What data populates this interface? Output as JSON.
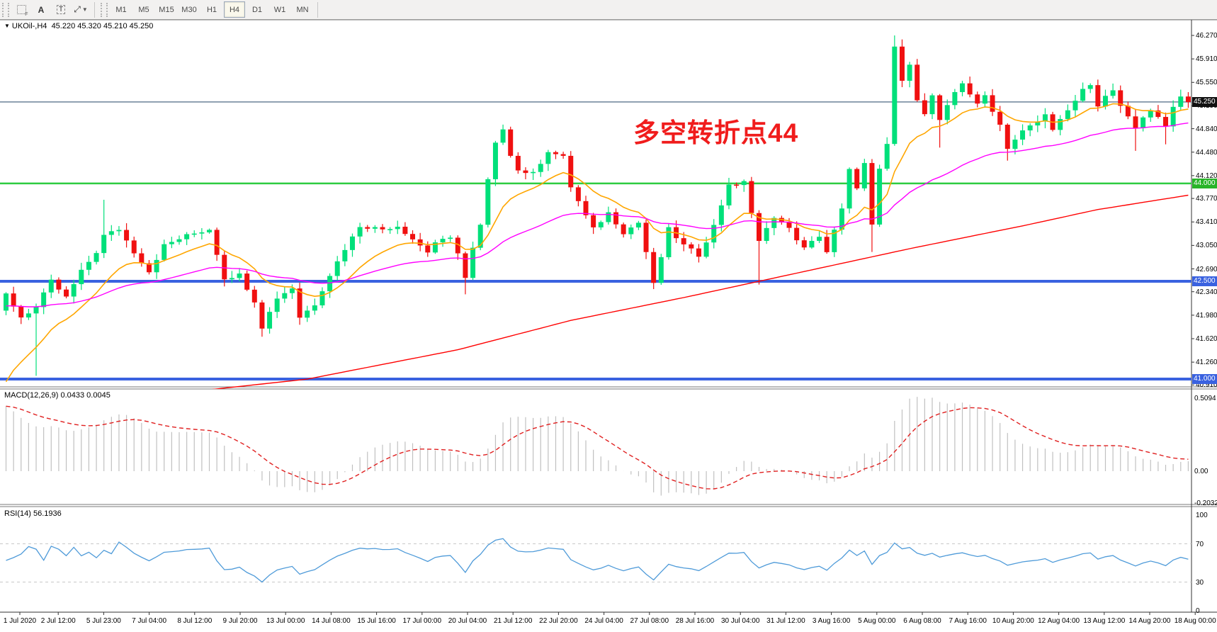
{
  "toolbar": {
    "tools": [
      {
        "name": "crosshair-grid-icon",
        "glyph": ""
      },
      {
        "name": "text-annotation-icon",
        "glyph": "A"
      },
      {
        "name": "label-tool-icon",
        "glyph": "T"
      },
      {
        "name": "arrows-tool-icon",
        "glyph": "⤢"
      }
    ],
    "timeframes": [
      {
        "label": "M1",
        "active": false
      },
      {
        "label": "M5",
        "active": false
      },
      {
        "label": "M15",
        "active": false
      },
      {
        "label": "M30",
        "active": false
      },
      {
        "label": "H1",
        "active": false
      },
      {
        "label": "H4",
        "active": true
      },
      {
        "label": "D1",
        "active": false
      },
      {
        "label": "W1",
        "active": false
      },
      {
        "label": "MN",
        "active": false
      }
    ]
  },
  "pane_title": {
    "symbol_period": "UKOil-,H4",
    "ohlc_text": "45.220 45.320 45.210 45.250"
  },
  "annotation": {
    "text": "多空转折点44",
    "color": "#f01c1c"
  },
  "chart_data": {
    "type": "candlestick",
    "symbol": "UKOil",
    "period": "H4",
    "ohlc_display": {
      "open": "45.220",
      "high": "45.320",
      "low": "45.210",
      "close": "45.250"
    },
    "colors": {
      "bull": "#00e07a",
      "bear": "#f01010",
      "ma_fast": "#ffa600",
      "ma_medium": "#ff00ff",
      "ma_slow": "#ff0000",
      "bid_line": "#6b8299",
      "bid_badge": "#111111",
      "green_line": "#2ecc40",
      "green_badge": "#28b428",
      "blue_line": "#3a62e0",
      "blue_badge": "#3a62e0",
      "macd_hist": "#c0c0c0",
      "macd_signal": "#e02020",
      "rsi_line": "#4f9bd9",
      "rsi_level": "#c8c8c8"
    },
    "price_axis": {
      "ticks": [
        46.27,
        45.91,
        45.55,
        45.19,
        44.84,
        44.48,
        44.12,
        43.77,
        43.41,
        43.05,
        42.69,
        42.34,
        41.98,
        41.62,
        41.26,
        40.91
      ],
      "current_price": {
        "value": 45.25,
        "label": "45.250"
      }
    },
    "hlines": [
      {
        "price": 44.0,
        "label": "44.000",
        "color_key": "green"
      },
      {
        "price": 42.5,
        "label": "42.500",
        "color_key": "blue"
      },
      {
        "price": 41.0,
        "label": "41.000",
        "color_key": "blue"
      }
    ],
    "time_labels": [
      "1 Jul 2020",
      "2 Jul 12:00",
      "5 Jul 23:00",
      "7 Jul 04:00",
      "8 Jul 12:00",
      "9 Jul 20:00",
      "13 Jul 00:00",
      "14 Jul 08:00",
      "15 Jul 16:00",
      "17 Jul 00:00",
      "20 Jul 04:00",
      "21 Jul 12:00",
      "22 Jul 20:00",
      "24 Jul 04:00",
      "27 Jul 08:00",
      "28 Jul 16:00",
      "30 Jul 04:00",
      "31 Jul 12:00",
      "3 Aug 16:00",
      "5 Aug 00:00",
      "6 Aug 08:00",
      "7 Aug 16:00",
      "10 Aug 20:00",
      "12 Aug 04:00",
      "13 Aug 12:00",
      "14 Aug 20:00",
      "18 Aug 00:00"
    ],
    "candle_count": 158,
    "close_path_anchors": [
      [
        0,
        42.3
      ],
      [
        2,
        41.95
      ],
      [
        4,
        42.1
      ],
      [
        6,
        42.5
      ],
      [
        8,
        42.25
      ],
      [
        10,
        42.65
      ],
      [
        12,
        42.95
      ],
      [
        13,
        43.2
      ],
      [
        15,
        43.3
      ],
      [
        17,
        42.95
      ],
      [
        19,
        42.65
      ],
      [
        21,
        43.05
      ],
      [
        24,
        43.2
      ],
      [
        27,
        43.3
      ],
      [
        29,
        42.55
      ],
      [
        31,
        42.6
      ],
      [
        33,
        42.2
      ],
      [
        34,
        41.8
      ],
      [
        36,
        42.25
      ],
      [
        38,
        42.4
      ],
      [
        39,
        41.95
      ],
      [
        41,
        42.15
      ],
      [
        43,
        42.6
      ],
      [
        45,
        43.0
      ],
      [
        47,
        43.35
      ],
      [
        50,
        43.3
      ],
      [
        52,
        43.35
      ],
      [
        54,
        43.15
      ],
      [
        56,
        42.95
      ],
      [
        57,
        43.1
      ],
      [
        59,
        43.15
      ],
      [
        60,
        42.95
      ],
      [
        61,
        42.55
      ],
      [
        62,
        43.0
      ],
      [
        63,
        43.35
      ],
      [
        64,
        44.05
      ],
      [
        65,
        44.6
      ],
      [
        66,
        44.85
      ],
      [
        67,
        44.45
      ],
      [
        68,
        44.2
      ],
      [
        70,
        44.15
      ],
      [
        72,
        44.5
      ],
      [
        74,
        44.4
      ],
      [
        75,
        43.95
      ],
      [
        77,
        43.5
      ],
      [
        78,
        43.3
      ],
      [
        80,
        43.55
      ],
      [
        82,
        43.25
      ],
      [
        84,
        43.4
      ],
      [
        85,
        42.95
      ],
      [
        86,
        42.45
      ],
      [
        88,
        43.3
      ],
      [
        90,
        43.05
      ],
      [
        92,
        42.9
      ],
      [
        94,
        43.35
      ],
      [
        96,
        44.0
      ],
      [
        97,
        43.95
      ],
      [
        98,
        44.05
      ],
      [
        99,
        43.55
      ],
      [
        100,
        43.1
      ],
      [
        102,
        43.5
      ],
      [
        104,
        43.3
      ],
      [
        106,
        43.0
      ],
      [
        108,
        43.2
      ],
      [
        109,
        42.95
      ],
      [
        111,
        43.6
      ],
      [
        112,
        44.2
      ],
      [
        113,
        43.95
      ],
      [
        114,
        44.3
      ],
      [
        115,
        43.35
      ],
      [
        116,
        44.2
      ],
      [
        117,
        44.6
      ],
      [
        118,
        46.1
      ],
      [
        119,
        45.55
      ],
      [
        120,
        45.85
      ],
      [
        121,
        45.3
      ],
      [
        122,
        45.05
      ],
      [
        123,
        45.35
      ],
      [
        124,
        44.95
      ],
      [
        126,
        45.4
      ],
      [
        127,
        45.55
      ],
      [
        129,
        45.2
      ],
      [
        130,
        45.35
      ],
      [
        132,
        44.9
      ],
      [
        133,
        44.55
      ],
      [
        135,
        44.8
      ],
      [
        137,
        44.95
      ],
      [
        138,
        45.05
      ],
      [
        139,
        44.85
      ],
      [
        141,
        45.1
      ],
      [
        142,
        45.25
      ],
      [
        143,
        45.45
      ],
      [
        144,
        45.5
      ],
      [
        145,
        45.2
      ],
      [
        146,
        45.35
      ],
      [
        147,
        45.4
      ],
      [
        148,
        45.2
      ],
      [
        149,
        45.0
      ],
      [
        150,
        44.85
      ],
      [
        151,
        45.0
      ],
      [
        152,
        45.1
      ],
      [
        153,
        45.05
      ],
      [
        154,
        44.9
      ],
      [
        155,
        45.15
      ],
      [
        156,
        45.32
      ],
      [
        157,
        45.25
      ]
    ],
    "wick_overrides": {
      "4": {
        "low": 41.05
      },
      "13": {
        "high": 43.75
      },
      "34": {
        "low": 41.65
      },
      "61": {
        "low": 42.3
      },
      "86": {
        "low": 42.38
      },
      "100": {
        "low": 42.45
      },
      "115": {
        "low": 42.95
      },
      "118": {
        "high": 46.27
      },
      "124": {
        "low": 44.55
      },
      "133": {
        "low": 44.35
      },
      "150": {
        "low": 44.5
      },
      "154": {
        "low": 44.6
      }
    },
    "moving_averages": [
      {
        "name": "fast-ma",
        "type": "ema",
        "period": 12,
        "seed_offset": -1.6,
        "color_key": "ma_fast"
      },
      {
        "name": "medium-ma",
        "type": "ema",
        "period": 40,
        "seed_offset": -0.2,
        "color_key": "ma_medium"
      },
      {
        "name": "slow-ma",
        "type": "anchors",
        "color_key": "ma_slow",
        "anchors": [
          [
            0,
            40.55
          ],
          [
            20,
            40.75
          ],
          [
            40,
            41.0
          ],
          [
            60,
            41.45
          ],
          [
            75,
            41.9
          ],
          [
            90,
            42.25
          ],
          [
            100,
            42.5
          ],
          [
            110,
            42.75
          ],
          [
            120,
            43.0
          ],
          [
            135,
            43.35
          ],
          [
            145,
            43.6
          ],
          [
            157,
            43.82
          ]
        ]
      }
    ],
    "indicators": [
      {
        "name": "MACD",
        "label": "MACD(12,26,9) 0.0433 0.0045",
        "params": [
          12,
          26,
          9
        ],
        "values_display": [
          "0.0433",
          "0.0045"
        ],
        "axis_ticks": [
          {
            "label": "0.5094",
            "value": 0.5094
          },
          {
            "label": "0.00",
            "value": 0.0
          },
          {
            "label": "-0.2032",
            "value": -0.2032
          }
        ]
      },
      {
        "name": "RSI",
        "label": "RSI(14) 56.1936",
        "period": 14,
        "value_display": "56.1936",
        "axis_ticks": [
          {
            "label": "100",
            "value": 100
          },
          {
            "label": "70",
            "value": 70
          },
          {
            "label": "30",
            "value": 30
          },
          {
            "label": "0",
            "value": 0
          }
        ],
        "levels": [
          70,
          30
        ]
      }
    ]
  }
}
